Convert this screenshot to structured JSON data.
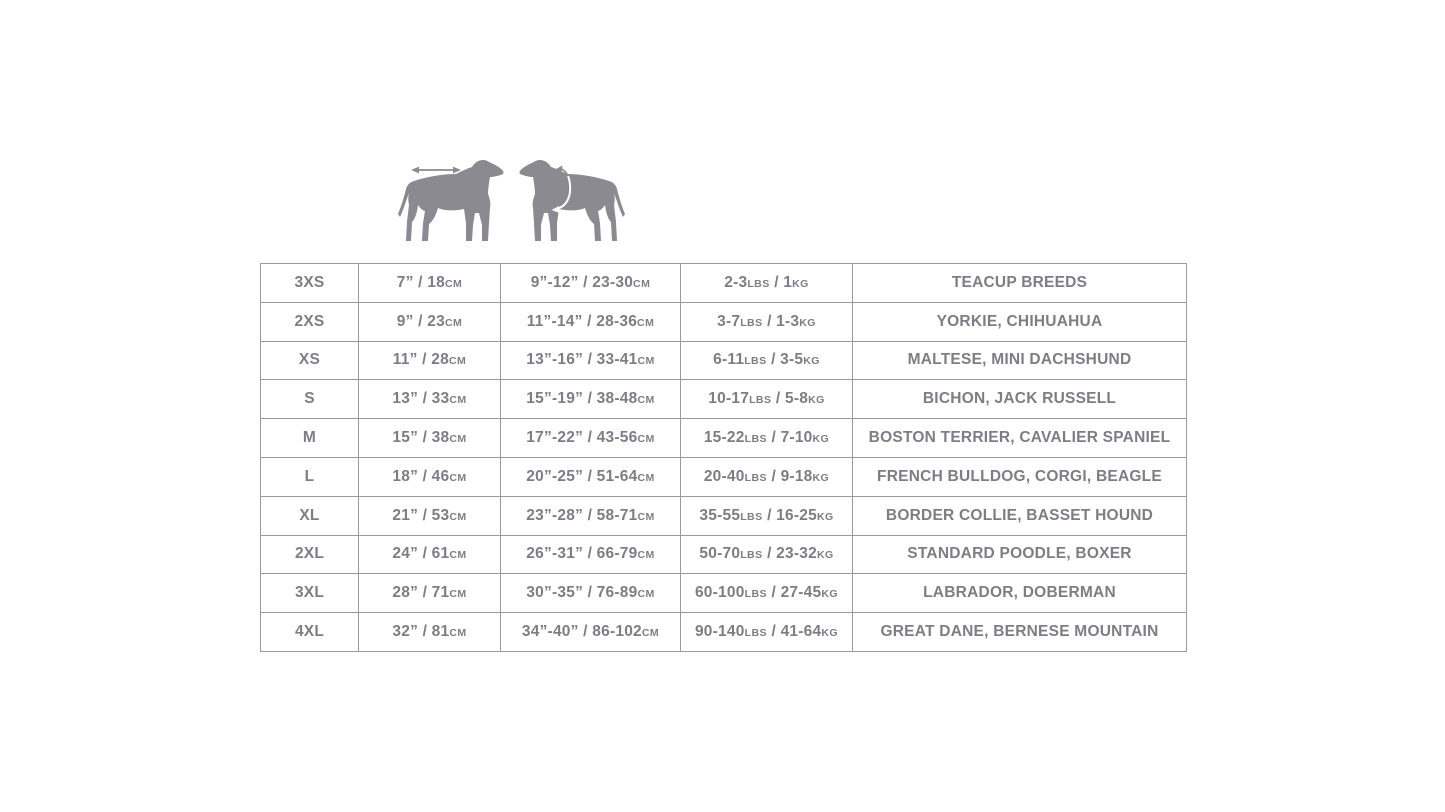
{
  "colors": {
    "text": "#7d7d85",
    "border": "#9a9a9e",
    "graphic": "#8a8a90"
  },
  "diagram": {
    "left_icon": "dog-back-length-arrow-icon",
    "right_icon": "dog-chest-girth-arrow-icon"
  },
  "size_chart": {
    "rows": [
      {
        "size": "3XS",
        "back": [
          {
            "t": "7” / 18"
          },
          {
            "t": "CM",
            "u": true
          }
        ],
        "chest": [
          {
            "t": "9”-12” / 23-30"
          },
          {
            "t": "CM",
            "u": true
          }
        ],
        "weight": [
          {
            "t": "2-3"
          },
          {
            "t": "LBS",
            "u": true
          },
          {
            "t": " / 1"
          },
          {
            "t": "KG",
            "u": true
          }
        ],
        "breeds": "TEACUP BREEDS"
      },
      {
        "size": "2XS",
        "back": [
          {
            "t": "9” / 23"
          },
          {
            "t": "CM",
            "u": true
          }
        ],
        "chest": [
          {
            "t": "11”-14” / 28-36"
          },
          {
            "t": "CM",
            "u": true
          }
        ],
        "weight": [
          {
            "t": "3-7"
          },
          {
            "t": "LBS",
            "u": true
          },
          {
            "t": " / 1-3"
          },
          {
            "t": "KG",
            "u": true
          }
        ],
        "breeds": "YORKIE, CHIHUAHUA"
      },
      {
        "size": "XS",
        "back": [
          {
            "t": "11” / 28"
          },
          {
            "t": "CM",
            "u": true
          }
        ],
        "chest": [
          {
            "t": "13”-16” / 33-41"
          },
          {
            "t": "CM",
            "u": true
          }
        ],
        "weight": [
          {
            "t": "6-11"
          },
          {
            "t": "LBS",
            "u": true
          },
          {
            "t": " / 3-5"
          },
          {
            "t": "KG",
            "u": true
          }
        ],
        "breeds": "MALTESE, MINI DACHSHUND"
      },
      {
        "size": "S",
        "back": [
          {
            "t": "13” / 33"
          },
          {
            "t": "CM",
            "u": true
          }
        ],
        "chest": [
          {
            "t": "15”-19” / 38-48"
          },
          {
            "t": "CM",
            "u": true
          }
        ],
        "weight": [
          {
            "t": "10-17"
          },
          {
            "t": "LBS",
            "u": true
          },
          {
            "t": " / 5-8"
          },
          {
            "t": "KG",
            "u": true
          }
        ],
        "breeds": "BICHON, JACK RUSSELL"
      },
      {
        "size": "M",
        "back": [
          {
            "t": "15” / 38"
          },
          {
            "t": "CM",
            "u": true
          }
        ],
        "chest": [
          {
            "t": "17”-22” / 43-56"
          },
          {
            "t": "CM",
            "u": true
          }
        ],
        "weight": [
          {
            "t": "15-22"
          },
          {
            "t": "LBS",
            "u": true
          },
          {
            "t": " / 7-10"
          },
          {
            "t": "KG",
            "u": true
          }
        ],
        "breeds": "BOSTON TERRIER, CAVALIER SPANIEL"
      },
      {
        "size": "L",
        "back": [
          {
            "t": "18” / 46"
          },
          {
            "t": "CM",
            "u": true
          }
        ],
        "chest": [
          {
            "t": "20”-25” / 51-64"
          },
          {
            "t": "CM",
            "u": true
          }
        ],
        "weight": [
          {
            "t": "20-40"
          },
          {
            "t": "LBS",
            "u": true
          },
          {
            "t": " / 9-18"
          },
          {
            "t": "KG",
            "u": true
          }
        ],
        "breeds": "FRENCH BULLDOG, CORGI, BEAGLE"
      },
      {
        "size": "XL",
        "back": [
          {
            "t": "21” / 53"
          },
          {
            "t": "CM",
            "u": true
          }
        ],
        "chest": [
          {
            "t": "23”-28” / 58-71"
          },
          {
            "t": "CM",
            "u": true
          }
        ],
        "weight": [
          {
            "t": "35-55"
          },
          {
            "t": "LBS",
            "u": true
          },
          {
            "t": " / 16-25"
          },
          {
            "t": "KG",
            "u": true
          }
        ],
        "breeds": "BORDER COLLIE, BASSET HOUND"
      },
      {
        "size": "2XL",
        "back": [
          {
            "t": "24” / 61"
          },
          {
            "t": "CM",
            "u": true
          }
        ],
        "chest": [
          {
            "t": "26”-31” / 66-79"
          },
          {
            "t": "CM",
            "u": true
          }
        ],
        "weight": [
          {
            "t": "50-70"
          },
          {
            "t": "LBS",
            "u": true
          },
          {
            "t": " / 23-32"
          },
          {
            "t": "KG",
            "u": true
          }
        ],
        "breeds": "STANDARD POODLE, BOXER"
      },
      {
        "size": "3XL",
        "back": [
          {
            "t": "28” / 71"
          },
          {
            "t": "CM",
            "u": true
          }
        ],
        "chest": [
          {
            "t": "30”-35” / 76-89"
          },
          {
            "t": "CM",
            "u": true
          }
        ],
        "weight": [
          {
            "t": "60-100"
          },
          {
            "t": "LBS",
            "u": true
          },
          {
            "t": " / 27-45"
          },
          {
            "t": "KG",
            "u": true
          }
        ],
        "breeds": "LABRADOR, DOBERMAN"
      },
      {
        "size": "4XL",
        "back": [
          {
            "t": "32” / 81"
          },
          {
            "t": "CM",
            "u": true
          }
        ],
        "chest": [
          {
            "t": "34”-40” / 86-102"
          },
          {
            "t": "CM",
            "u": true
          }
        ],
        "weight": [
          {
            "t": "90-140"
          },
          {
            "t": "LBS",
            "u": true
          },
          {
            "t": " / 41-64"
          },
          {
            "t": "KG",
            "u": true
          }
        ],
        "breeds": "GREAT DANE, BERNESE MOUNTAIN"
      }
    ]
  }
}
